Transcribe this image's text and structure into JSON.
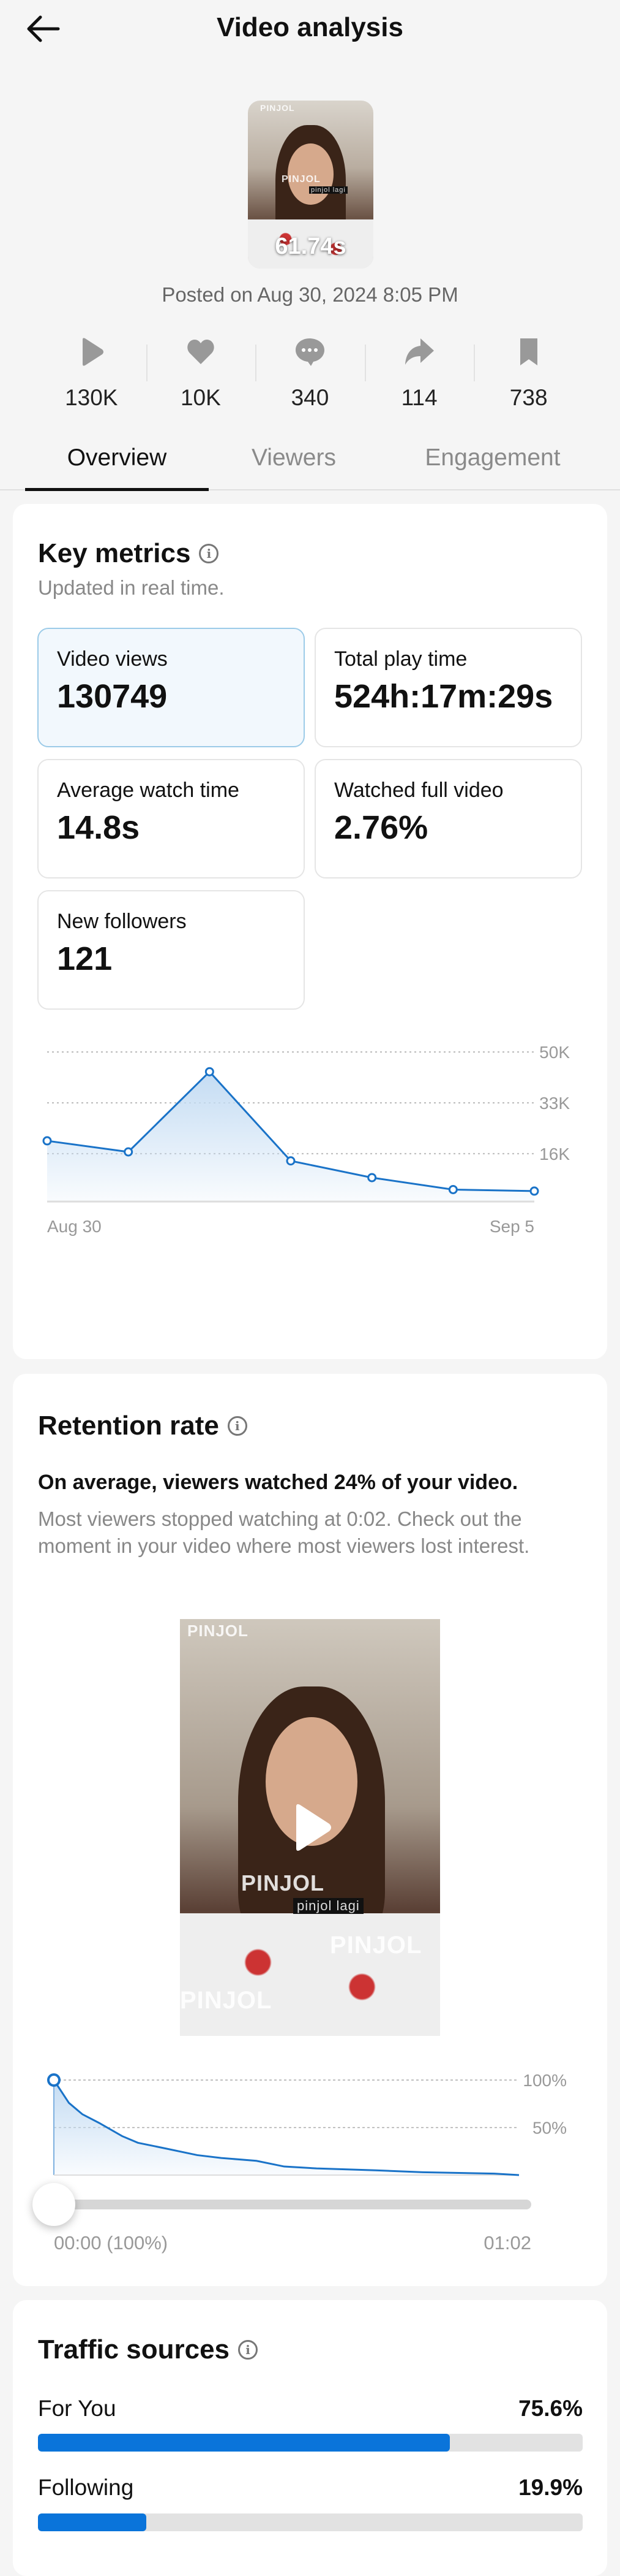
{
  "header": {
    "title": "Video analysis",
    "back": "back-arrow-icon"
  },
  "video": {
    "duration": "61.74s",
    "posted": "Posted on Aug 30, 2024 8:05 PM",
    "overlay_text": "PINJOL",
    "caption": "pinjol lagi"
  },
  "stats": [
    {
      "icon": "play-icon",
      "value": "130K"
    },
    {
      "icon": "heart-icon",
      "value": "10K"
    },
    {
      "icon": "comment-icon",
      "value": "340"
    },
    {
      "icon": "share-icon",
      "value": "114"
    },
    {
      "icon": "bookmark-icon",
      "value": "738"
    }
  ],
  "tabs": [
    {
      "label": "Overview",
      "active": true
    },
    {
      "label": "Viewers"
    },
    {
      "label": "Engagement"
    }
  ],
  "key_metrics": {
    "title": "Key metrics",
    "subtitle": "Updated in real time.",
    "items": [
      {
        "label": "Video views",
        "value": "130749"
      },
      {
        "label": "Total play time",
        "value": "524h:17m:29s"
      },
      {
        "label": "Average watch time",
        "value": "14.8s"
      },
      {
        "label": "Watched full video",
        "value": "2.76%"
      },
      {
        "label": "New followers",
        "value": "121"
      }
    ]
  },
  "retention": {
    "title": "Retention rate",
    "headline": "On average, viewers watched 24% of your video.",
    "description": "Most viewers stopped watching at 0:02. Check out the moment in your video where most viewers lost interest.",
    "slider_value": 0,
    "start_label": "00:00 (100%)",
    "end_label": "01:02"
  },
  "traffic": {
    "title": "Traffic sources",
    "items": [
      {
        "label": "For You",
        "value": "75.6%",
        "pct": 75.6
      },
      {
        "label": "Following",
        "value": "19.9%",
        "pct": 19.9
      }
    ]
  },
  "colors": {
    "accent": "#0a74da",
    "line": "#1a73c8"
  },
  "chart_data": [
    {
      "type": "area",
      "title": "Video views",
      "x": [
        "Aug 30",
        "Aug 31",
        "Sep 1",
        "Sep 2",
        "Sep 3",
        "Sep 4",
        "Sep 5"
      ],
      "values": [
        20300,
        16600,
        43400,
        13600,
        8000,
        4000,
        3500
      ],
      "yticks": [
        {
          "v": 16000,
          "label": "16K"
        },
        {
          "v": 33000,
          "label": "33K"
        },
        {
          "v": 50000,
          "label": "50K"
        }
      ],
      "xtick_labels": [
        "Aug 30",
        "Sep 5"
      ],
      "ylim": [
        0,
        50000
      ],
      "grid": true
    },
    {
      "type": "area",
      "title": "Retention rate",
      "x_seconds": [
        0,
        2,
        3.8,
        6,
        9.1,
        11.2,
        14.9,
        19.1,
        22.3,
        27,
        30.7,
        35,
        42.9,
        49.2,
        58.7,
        62
      ],
      "values": [
        100,
        76,
        64,
        55,
        41,
        34,
        28,
        21,
        18,
        15,
        9,
        7,
        5,
        3,
        1.5,
        0
      ],
      "yticks": [
        {
          "v": 50,
          "label": "50%"
        },
        {
          "v": 100,
          "label": "100%"
        }
      ],
      "xlim": [
        0,
        62
      ],
      "ylim": [
        0,
        100
      ],
      "grid": true
    }
  ]
}
